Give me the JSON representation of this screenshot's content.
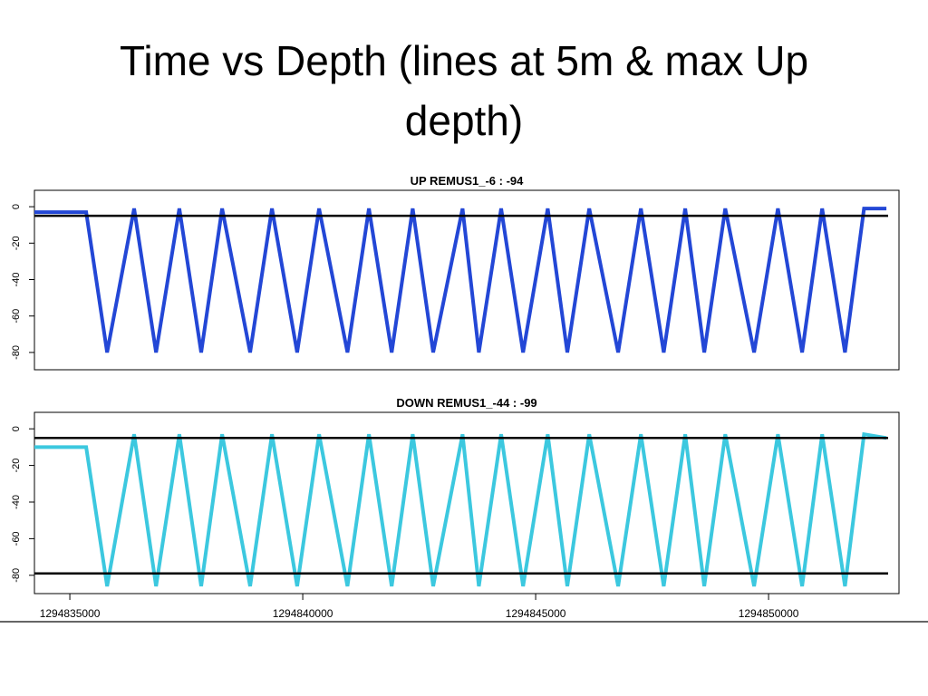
{
  "title": "Time vs Depth (lines at 5m & max Up depth)",
  "chart_data": [
    {
      "type": "line",
      "title": "UP REMUS1_-6 : -94",
      "x": [
        1294834240,
        1294835350,
        1294835800,
        1294836380,
        1294836850,
        1294837350,
        1294837820,
        1294838270,
        1294838870,
        1294839340,
        1294839880,
        1294840350,
        1294840960,
        1294841420,
        1294841910,
        1294842360,
        1294842800,
        1294843430,
        1294843780,
        1294844260,
        1294844730,
        1294845260,
        1294845680,
        1294846150,
        1294846770,
        1294847260,
        1294847750,
        1294848210,
        1294848620,
        1294849070,
        1294849690,
        1294850200,
        1294850720,
        1294851150,
        1294851640,
        1294852050,
        1294852530
      ],
      "values": [
        -3,
        -3,
        -80,
        -1,
        -80,
        -1,
        -80,
        -1,
        -80,
        -1,
        -80,
        -1,
        -80,
        -1,
        -80,
        -1,
        -80,
        -1,
        -80,
        -1,
        -80,
        -1,
        -80,
        -1,
        -80,
        -1,
        -80,
        -1,
        -80,
        -1,
        -80,
        -1,
        -80,
        -1,
        -80,
        -1,
        -1
      ],
      "color": "#2347d6",
      "hlines": [
        -5
      ],
      "xlim": [
        1294834240,
        1294852800
      ],
      "ylim": [
        -89.5,
        9
      ],
      "yticks": [
        0,
        -20,
        -40,
        -60,
        -80
      ]
    },
    {
      "type": "line",
      "title": "DOWN REMUS1_-44 : -99",
      "x": [
        1294834240,
        1294835350,
        1294835800,
        1294836380,
        1294836850,
        1294837350,
        1294837820,
        1294838270,
        1294838870,
        1294839340,
        1294839880,
        1294840350,
        1294840960,
        1294841420,
        1294841910,
        1294842360,
        1294842800,
        1294843430,
        1294843780,
        1294844260,
        1294844730,
        1294845260,
        1294845680,
        1294846150,
        1294846770,
        1294847260,
        1294847750,
        1294848210,
        1294848620,
        1294849070,
        1294849690,
        1294850200,
        1294850720,
        1294851150,
        1294851640,
        1294852050,
        1294852530
      ],
      "values": [
        -10,
        -10,
        -86,
        -3,
        -86,
        -3,
        -86,
        -3,
        -86,
        -3,
        -86,
        -3,
        -86,
        -3,
        -86,
        -3,
        -86,
        -3,
        -86,
        -3,
        -86,
        -3,
        -86,
        -3,
        -86,
        -3,
        -86,
        -3,
        -86,
        -3,
        -86,
        -3,
        -86,
        -3,
        -86,
        -3,
        -5
      ],
      "color": "#3cc8df",
      "hlines": [
        -5,
        -79
      ],
      "xlim": [
        1294834240,
        1294852800
      ],
      "ylim": [
        -90,
        9
      ],
      "yticks": [
        0,
        -20,
        -40,
        -60,
        -80
      ],
      "xticks": [
        1294835000,
        1294840000,
        1294845000,
        1294850000
      ]
    }
  ]
}
